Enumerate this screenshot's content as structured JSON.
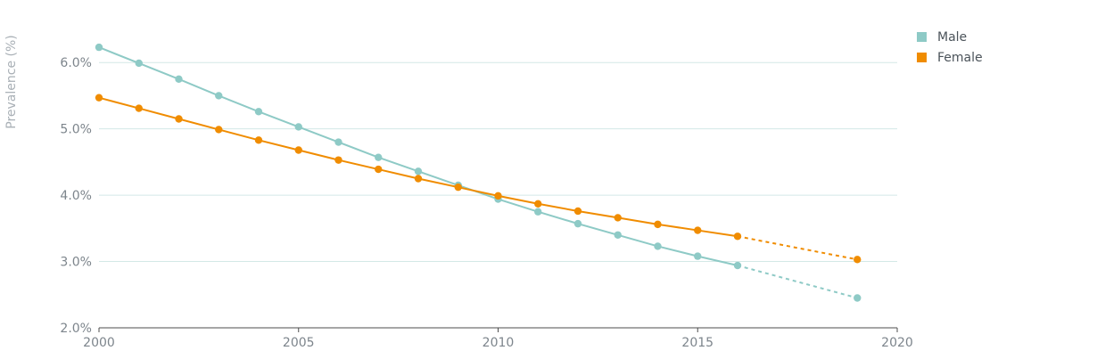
{
  "chart_data": {
    "type": "line",
    "ylabel": "Prevalence (%)",
    "xlabel": "",
    "xlim": [
      2000,
      2020
    ],
    "ylim": [
      2.0,
      6.5
    ],
    "x_ticks": [
      2000,
      2005,
      2010,
      2015,
      2020
    ],
    "y_ticks": [
      2.0,
      3.0,
      4.0,
      5.0,
      6.0
    ],
    "y_tick_labels": [
      "2.0%",
      "3.0%",
      "4.0%",
      "5.0%",
      "6.0%"
    ],
    "grid": "horizontal",
    "legend_position": "top-right",
    "series": [
      {
        "name": "Male",
        "color": "#8ecac6",
        "x": [
          2000,
          2001,
          2002,
          2003,
          2004,
          2005,
          2006,
          2007,
          2008,
          2009,
          2010,
          2011,
          2012,
          2013,
          2014,
          2015,
          2016
        ],
        "values": [
          6.23,
          5.99,
          5.75,
          5.5,
          5.26,
          5.03,
          4.8,
          4.57,
          4.36,
          4.15,
          3.94,
          3.75,
          3.57,
          3.4,
          3.23,
          3.08,
          2.94
        ],
        "projection": {
          "x": [
            2016,
            2019
          ],
          "values": [
            2.94,
            2.45
          ]
        }
      },
      {
        "name": "Female",
        "color": "#f08c00",
        "x": [
          2000,
          2001,
          2002,
          2003,
          2004,
          2005,
          2006,
          2007,
          2008,
          2009,
          2010,
          2011,
          2012,
          2013,
          2014,
          2015,
          2016
        ],
        "values": [
          5.47,
          5.31,
          5.15,
          4.99,
          4.83,
          4.68,
          4.53,
          4.39,
          4.25,
          4.12,
          3.99,
          3.87,
          3.76,
          3.66,
          3.56,
          3.47,
          3.38
        ],
        "projection": {
          "x": [
            2016,
            2019
          ],
          "values": [
            3.38,
            3.03
          ]
        }
      }
    ]
  },
  "legend": {
    "items": [
      {
        "label": "Male",
        "color": "#8ecac6"
      },
      {
        "label": "Female",
        "color": "#f08c00"
      }
    ]
  }
}
